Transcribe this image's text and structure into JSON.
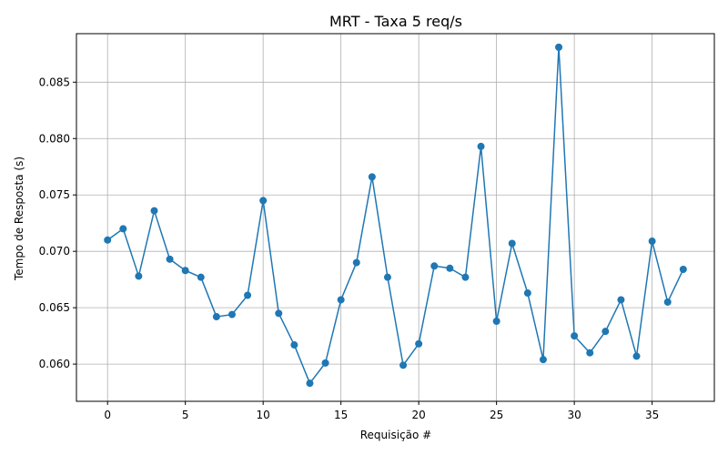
{
  "chart_data": {
    "type": "line",
    "title": "MRT - Taxa 5 req/s",
    "xlabel": "Requisição #",
    "ylabel": "Tempo de Resposta (s)",
    "xlim": [
      -2,
      39
    ],
    "ylim": [
      0.0567,
      0.0893
    ],
    "xticks": [
      0,
      5,
      10,
      15,
      20,
      25,
      30,
      35
    ],
    "xtick_labels": [
      "0",
      "5",
      "10",
      "15",
      "20",
      "25",
      "30",
      "35"
    ],
    "yticks": [
      0.06,
      0.065,
      0.07,
      0.075,
      0.08,
      0.085
    ],
    "ytick_labels": [
      "0.060",
      "0.065",
      "0.070",
      "0.075",
      "0.080",
      "0.085"
    ],
    "grid": true,
    "color": "#1f77b4",
    "marker": "circle",
    "x": [
      0,
      1,
      2,
      3,
      4,
      5,
      6,
      7,
      8,
      9,
      10,
      11,
      12,
      13,
      14,
      15,
      16,
      17,
      18,
      19,
      20,
      21,
      22,
      23,
      24,
      25,
      26,
      27,
      28,
      29,
      30,
      31,
      32,
      33,
      34,
      35,
      36,
      37
    ],
    "series": [
      {
        "values": [
          0.071,
          0.072,
          0.0678,
          0.0736,
          0.0693,
          0.0683,
          0.0677,
          0.0642,
          0.0644,
          0.0661,
          0.0745,
          0.0645,
          0.0617,
          0.0583,
          0.0601,
          0.0657,
          0.069,
          0.0766,
          0.0677,
          0.0599,
          0.0618,
          0.0687,
          0.0685,
          0.0677,
          0.0793,
          0.0638,
          0.0707,
          0.0663,
          0.0604,
          0.0881,
          0.0625,
          0.061,
          0.0629,
          0.0657,
          0.0607,
          0.0709,
          0.0655,
          0.0684
        ]
      }
    ]
  }
}
